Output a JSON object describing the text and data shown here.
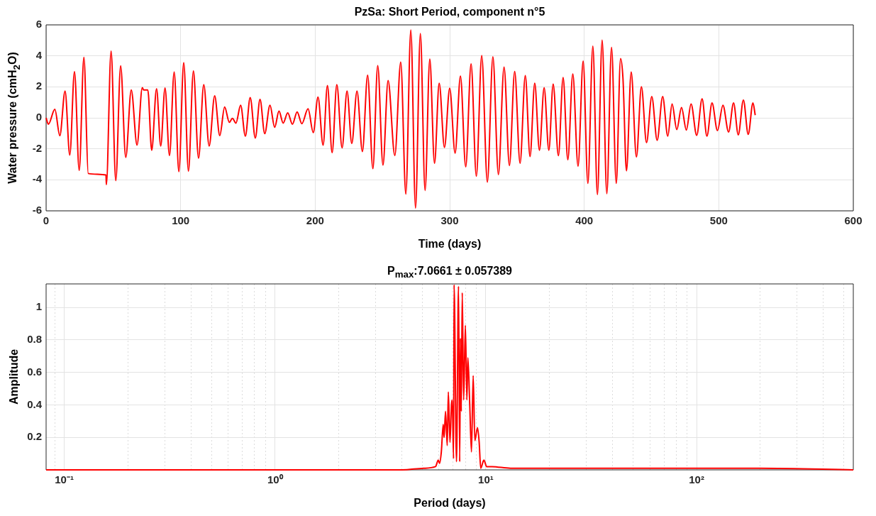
{
  "chart_data": [
    {
      "type": "line",
      "title": "PzSa: Short Period, component n°5",
      "xlabel": "Time (days)",
      "ylabel": "Water pressure (cmH$_{2}$O)",
      "xlim": [
        0,
        600
      ],
      "xticks": [
        0,
        100,
        200,
        300,
        400,
        500,
        600
      ],
      "ylim": [
        -6,
        6
      ],
      "yticks": [
        -6,
        -4,
        -2,
        0,
        2,
        4,
        6
      ],
      "grid": true,
      "color": "#ff0000",
      "x": [
        0,
        1.7,
        6.5,
        10.2,
        14.1,
        17.6,
        21.1,
        24.6,
        28.1,
        31.3,
        44.5,
        44.8,
        48.3,
        51.8,
        55.4,
        59.2,
        63.3,
        67.6,
        71.5,
        72.5,
        75.6,
        78.5,
        82.1,
        85.2,
        88.4,
        91.7,
        95.2,
        98.7,
        102.3,
        105.8,
        109.5,
        113.3,
        117.2,
        121.2,
        125.3,
        129.1,
        132.7,
        136.2,
        138.5,
        141.1,
        144.6,
        148.1,
        151.7,
        155.5,
        159,
        162.5,
        166.4,
        169.9,
        173.1,
        176.2,
        179.6,
        183.1,
        186.6,
        190.1,
        194.7,
        198.6,
        202.1,
        205.9,
        209.1,
        212.6,
        216.1,
        220,
        223.7,
        227.2,
        231.1,
        235.1,
        239,
        242.9,
        246.5,
        250.4,
        254.2,
        259.2,
        263.6,
        267.4,
        271.1,
        274.6,
        278.2,
        281.7,
        285.2,
        288.7,
        292.2,
        296.1,
        300,
        304,
        308,
        311.9,
        315.9,
        319.8,
        323.8,
        328,
        332.1,
        336.2,
        340.4,
        344.4,
        348.3,
        352.3,
        356.2,
        359.7,
        363.2,
        366.7,
        370.2,
        373.7,
        376.9,
        380.8,
        384.3,
        387.8,
        391.5,
        395.4,
        399.2,
        402.7,
        406.4,
        409.8,
        413.3,
        416.8,
        420.3,
        423.8,
        427,
        428.8,
        431.4,
        434.9,
        438.8,
        442.5,
        446.3,
        450.2,
        454.2,
        458.3,
        462.1,
        465.3,
        468.8,
        472.3,
        475.9,
        479.4,
        483.6,
        487.6,
        491.2,
        495,
        499,
        503.1,
        507.3,
        511,
        514.5,
        518.3,
        521.9,
        525.4,
        527.1
      ],
      "values": [
        0,
        -0.41,
        0.55,
        -1.15,
        1.73,
        -2.4,
        2.98,
        -3.39,
        3.91,
        -3.59,
        -3.69,
        -4.31,
        4.31,
        -4.05,
        3.36,
        -2.55,
        1.8,
        -1.76,
        1.95,
        1.8,
        1.8,
        -2.09,
        1.88,
        -1.82,
        1.92,
        -2.43,
        2.95,
        -3.47,
        3.56,
        -3.44,
        3.02,
        -2.6,
        2.14,
        -1.82,
        1.42,
        -1.15,
        0.7,
        -0.29,
        -0.03,
        -0.34,
        0.81,
        -1.18,
        1.3,
        -1.3,
        1.19,
        -1.02,
        0.81,
        -0.61,
        0.43,
        -0.34,
        0.32,
        -0.41,
        0.38,
        -0.38,
        0.58,
        -0.95,
        1.34,
        -1.76,
        2.08,
        -2.24,
        2.14,
        -1.94,
        1.73,
        -1.66,
        1.73,
        -2.17,
        2.75,
        -3.28,
        3.37,
        -3.05,
        2.41,
        -2.43,
        3.6,
        -4.92,
        5.67,
        -5.83,
        5.44,
        -4.69,
        3.79,
        -2.93,
        2.23,
        -1.91,
        1.91,
        -2.28,
        2.69,
        -3.16,
        3.48,
        -3.77,
        4.02,
        -4.15,
        3.94,
        -3.66,
        3.28,
        -3.08,
        2.99,
        -2.93,
        2.72,
        -2.5,
        2.23,
        -2.09,
        1.95,
        -2.09,
        2.18,
        -2.44,
        2.6,
        -2.7,
        2.83,
        -3.12,
        3.66,
        -4.23,
        4.63,
        -4.95,
        5.01,
        -4.89,
        4.55,
        -4.23,
        3.83,
        2.53,
        -3.42,
        2.95,
        -2.52,
        2.0,
        -1.6,
        1.37,
        -1.45,
        1.37,
        -1.18,
        0.89,
        -0.76,
        0.66,
        -0.79,
        0.89,
        -1.13,
        1.22,
        -1.18,
        0.96,
        -0.82,
        0.81,
        -0.92,
        0.96,
        -1.1,
        1.15,
        -1.07,
        0.96,
        0.17
      ]
    },
    {
      "type": "line",
      "title": "P$_{max}$:7.0661 ± 0.057389",
      "xlabel": "Period (days)",
      "ylabel": "Amplitude",
      "log": "x",
      "xlim": [
        0.082,
        554
      ],
      "xticks": [
        {
          "value": 0.09,
          "label": null
        },
        {
          "value": 0.1,
          "label": "10⁻¹"
        },
        {
          "value": 0.2,
          "label": null
        },
        {
          "value": 0.3,
          "label": null
        },
        {
          "value": 0.4,
          "label": null
        },
        {
          "value": 0.5,
          "label": null
        },
        {
          "value": 0.6,
          "label": null
        },
        {
          "value": 0.7,
          "label": null
        },
        {
          "value": 0.8,
          "label": null
        },
        {
          "value": 0.9,
          "label": null
        },
        {
          "value": 1,
          "label": "10⁰"
        },
        {
          "value": 2,
          "label": null
        },
        {
          "value": 3,
          "label": null
        },
        {
          "value": 4,
          "label": null
        },
        {
          "value": 5,
          "label": null
        },
        {
          "value": 6,
          "label": null
        },
        {
          "value": 7,
          "label": null
        },
        {
          "value": 8,
          "label": null
        },
        {
          "value": 9,
          "label": null
        },
        {
          "value": 10,
          "label": "10¹"
        },
        {
          "value": 20,
          "label": null
        },
        {
          "value": 30,
          "label": null
        },
        {
          "value": 40,
          "label": null
        },
        {
          "value": 50,
          "label": null
        },
        {
          "value": 60,
          "label": null
        },
        {
          "value": 70,
          "label": null
        },
        {
          "value": 80,
          "label": null
        },
        {
          "value": 90,
          "label": null
        },
        {
          "value": 100,
          "label": "10²"
        },
        {
          "value": 200,
          "label": null
        },
        {
          "value": 300,
          "label": null
        },
        {
          "value": 400,
          "label": null
        },
        {
          "value": 500,
          "label": null
        }
      ],
      "ylim": [
        0,
        1.145
      ],
      "yticks": [
        0.2,
        0.4,
        0.6,
        0.8,
        1
      ],
      "grid": true,
      "color": "#ff0000",
      "x": [
        0.082,
        1,
        4,
        5.07,
        5.77,
        5.95,
        6.03,
        6.15,
        6.28,
        6.34,
        6.44,
        6.56,
        6.64,
        6.76,
        6.87,
        6.93,
        7.03,
        7.07,
        7.26,
        7.42,
        7.52,
        7.58,
        7.65,
        7.73,
        7.85,
        8.0,
        8.13,
        8.22,
        8.39,
        8.55,
        8.71,
        8.87,
        9.13,
        9.3,
        9.46,
        9.79,
        10.1,
        10.7,
        13.1,
        30,
        100,
        200,
        554
      ],
      "values": [
        0,
        0,
        0,
        0.01,
        0.02,
        0.06,
        0.04,
        0.11,
        0.28,
        0.2,
        0.36,
        0.15,
        0.48,
        0.17,
        0.4,
        0.43,
        0.07,
        1.14,
        0.05,
        1.13,
        0.05,
        0.81,
        0.36,
        1.09,
        0.43,
        0.89,
        0.43,
        0.69,
        0.4,
        0.11,
        0.58,
        0.18,
        0.26,
        0.17,
        0.01,
        0.06,
        0.02,
        0.02,
        0.01,
        0.01,
        0.01,
        0.01,
        0
      ]
    }
  ]
}
